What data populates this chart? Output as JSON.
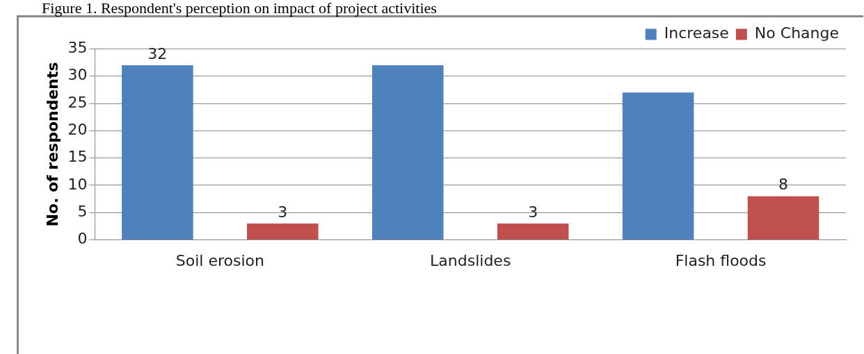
{
  "chart_data": {
    "type": "bar",
    "title": "Figure 1. Respondent's perception on impact of project activities",
    "ylabel": "No. of respondents",
    "categories": [
      "Soil erosion",
      "Landslides",
      "Flash floods"
    ],
    "series": [
      {
        "name": "Increase",
        "color": "#4f81bd",
        "values": [
          32,
          32,
          27
        ],
        "value_labels": [
          "32",
          null,
          null
        ]
      },
      {
        "name": "No Change",
        "color": "#c0504d",
        "values": [
          3,
          3,
          8
        ],
        "value_labels": [
          "3",
          "3",
          "8"
        ]
      }
    ],
    "ylim": [
      0,
      35
    ],
    "yticks": [
      0,
      5,
      10,
      15,
      20,
      25,
      30,
      35
    ],
    "grid": "y",
    "legend": "top right"
  }
}
